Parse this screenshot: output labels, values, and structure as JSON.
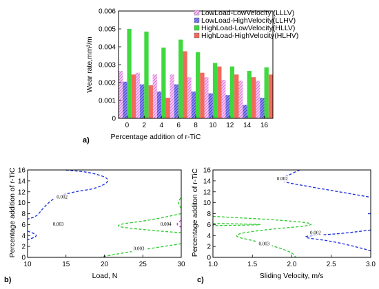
{
  "chart_data": [
    {
      "type": "bar",
      "panel_label": "a)",
      "categories": [
        "0",
        "2",
        "4",
        "6",
        "8",
        "10",
        "12",
        "14",
        "16"
      ],
      "xlabel": "Percentage addition of r-TiC",
      "ylabel": "Wear rate,mm³/m",
      "ylim": [
        0,
        0.006
      ],
      "yticks": [
        "0",
        "0.001",
        "0.002",
        "0.003",
        "0.004",
        "0.005",
        "0.006"
      ],
      "legend_position": "top-right",
      "series": [
        {
          "name": "LowLoad-LowVelocity (LLLV)",
          "color": "#e27be0",
          "pattern": "hatch-pink",
          "values": [
            0.00265,
            0.00255,
            0.00245,
            0.00245,
            0.0023,
            0.0023,
            0.00215,
            0.0021,
            0.0021
          ]
        },
        {
          "name": "LowLoad-HighVelocity(LLHV)",
          "color": "#3a3adf",
          "pattern": "hatch-blue",
          "values": [
            0.00205,
            0.0019,
            0.0015,
            0.0019,
            0.0015,
            0.0014,
            0.0013,
            0.00075,
            0.00115
          ]
        },
        {
          "name": "HighLoad-LowVelocity(HLLV)",
          "color": "#3fd93f",
          "pattern": "solid-green",
          "values": [
            0.005,
            0.00485,
            0.00395,
            0.0044,
            0.0037,
            0.0031,
            0.0029,
            0.00265,
            0.00285
          ]
        },
        {
          "name": "HighLoad-HighVelocity(HLHV)",
          "color": "#f26a5b",
          "pattern": "solid-red",
          "values": [
            0.00245,
            0.00185,
            0.00115,
            0.00375,
            0.00255,
            0.0029,
            0.00245,
            0.0023,
            0.00245
          ]
        }
      ]
    },
    {
      "type": "contour",
      "panel_label": "b)",
      "xlabel": "Load, N",
      "ylabel": "Percentage addition of r-TiC",
      "xlim": [
        10,
        30
      ],
      "ylim": [
        0,
        16
      ],
      "xticks": [
        "10",
        "15",
        "20",
        "25",
        "30"
      ],
      "yticks": [
        "0",
        "2",
        "4",
        "6",
        "8",
        "10",
        "12",
        "14",
        "16"
      ],
      "contours": [
        {
          "level": "0.002",
          "color": "#2233dd",
          "points": [
            [
              15.0,
              16.0
            ],
            [
              18.5,
              15.5
            ],
            [
              21.0,
              14.2
            ],
            [
              19.0,
              12.6
            ],
            [
              16.0,
              12.0
            ],
            [
              13.5,
              11.0
            ],
            [
              12.0,
              9.0
            ],
            [
              11.2,
              7.5
            ],
            [
              10.0,
              7.0
            ]
          ]
        },
        {
          "level": "0.002",
          "color": "#2233dd",
          "points": [
            [
              10.0,
              4.8
            ],
            [
              11.5,
              4.0
            ],
            [
              10.0,
              3.2
            ]
          ]
        },
        {
          "level": "0.003",
          "color": "#33cc33",
          "points": [
            [
              30.0,
              8.0
            ],
            [
              26.0,
              6.8
            ],
            [
              20.5,
              5.8
            ],
            [
              25.5,
              5.0
            ],
            [
              30.0,
              4.5
            ]
          ]
        },
        {
          "level": "0.003",
          "color": "#33cc33",
          "points": [
            [
              30.0,
              2.5
            ],
            [
              24.5,
              1.3
            ],
            [
              20.0,
              0.2
            ],
            [
              19.5,
              0.0
            ]
          ]
        },
        {
          "level": "0.004",
          "color": "#dd33dd",
          "points": [
            [
              30.0,
              6.8
            ],
            [
              29.3,
              6.1
            ],
            [
              30.0,
              5.5
            ]
          ]
        },
        {
          "level": "",
          "color": "#33cc33",
          "points": [
            [
              30.0,
              9.0
            ],
            [
              29.5,
              10.0
            ],
            [
              30.0,
              11.0
            ]
          ]
        }
      ],
      "contour_labels": [
        {
          "text": "0.002",
          "x": 14.5,
          "y": 10.8
        },
        {
          "text": "0.003",
          "x": 14.0,
          "y": 5.8
        },
        {
          "text": "0.004",
          "x": 28.0,
          "y": 5.8
        },
        {
          "text": "0.003",
          "x": 24.5,
          "y": 1.3
        }
      ]
    },
    {
      "type": "contour",
      "panel_label": "c)",
      "xlabel": "Sliding Velocity, m/s",
      "ylabel": "Percentage additon of r-TiC",
      "xlim": [
        1.0,
        3.0
      ],
      "ylim": [
        0,
        16
      ],
      "xticks": [
        "1.0",
        "1.5",
        "2.0",
        "2.5",
        "3.0"
      ],
      "yticks": [
        "0",
        "2",
        "4",
        "6",
        "8",
        "10",
        "12",
        "14",
        "16"
      ],
      "contours": [
        {
          "level": "0.002",
          "color": "#2233dd",
          "points": [
            [
              2.1,
              16.0
            ],
            [
              1.95,
              15.0
            ],
            [
              1.82,
              14.0
            ],
            [
              2.2,
              13.0
            ],
            [
              2.6,
              12.0
            ],
            [
              3.0,
              11.0
            ]
          ]
        },
        {
          "level": "0.002",
          "color": "#2233dd",
          "points": [
            [
              3.0,
              8.0
            ],
            [
              2.95,
              8.0
            ]
          ]
        },
        {
          "level": "0.002",
          "color": "#2233dd",
          "points": [
            [
              3.0,
              5.0
            ],
            [
              2.6,
              4.3
            ],
            [
              2.05,
              3.8
            ],
            [
              2.5,
              3.0
            ],
            [
              2.85,
              1.8
            ],
            [
              3.0,
              1.2
            ]
          ]
        },
        {
          "level": "0.003",
          "color": "#33cc33",
          "points": [
            [
              1.0,
              7.5
            ],
            [
              1.9,
              6.8
            ],
            [
              2.4,
              6.0
            ],
            [
              1.6,
              5.0
            ],
            [
              1.2,
              4.0
            ],
            [
              1.6,
              2.8
            ],
            [
              2.0,
              1.0
            ],
            [
              2.05,
              0.0
            ]
          ]
        },
        {
          "level": "",
          "color": "#33cc33",
          "points": [
            [
              1.0,
              6.2
            ],
            [
              1.8,
              6.0
            ],
            [
              1.0,
              5.8
            ]
          ]
        }
      ],
      "contour_labels": [
        {
          "text": "0.002",
          "x": 1.88,
          "y": 14.1
        },
        {
          "text": "0.002",
          "x": 2.3,
          "y": 4.2
        },
        {
          "text": "0.003",
          "x": 1.65,
          "y": 2.2
        }
      ]
    }
  ]
}
